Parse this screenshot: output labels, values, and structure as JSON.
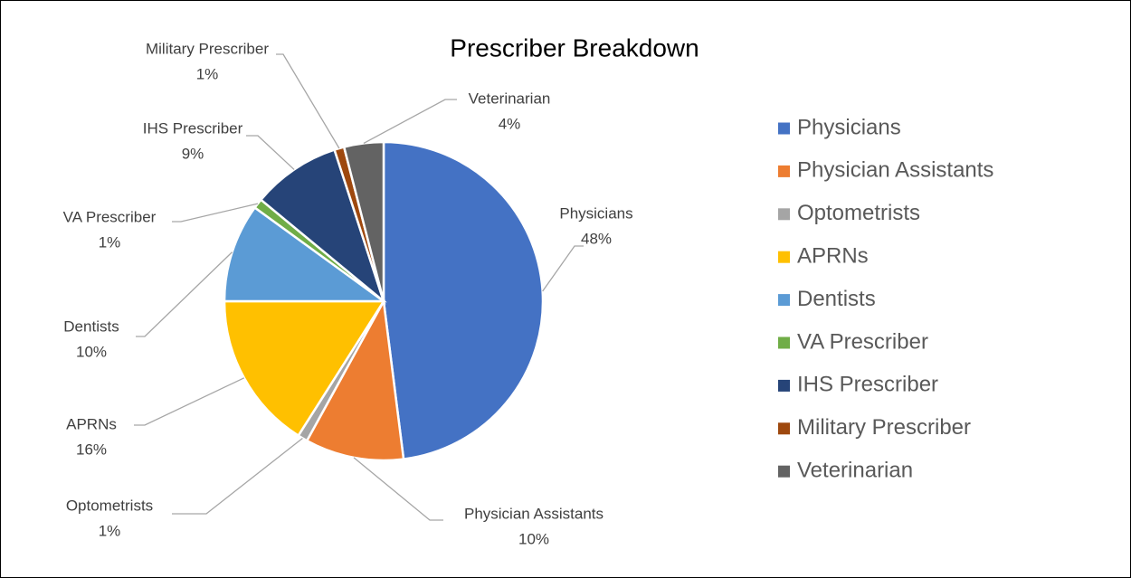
{
  "chart_data": {
    "type": "pie",
    "title": "Prescriber Breakdown",
    "categories": [
      "Physicians",
      "Physician Assistants",
      "Optometrists",
      "APRNs",
      "Dentists",
      "VA Prescriber",
      "IHS Prescriber",
      "Military Prescriber",
      "Veterinarian"
    ],
    "values": [
      48,
      10,
      1,
      16,
      10,
      1,
      9,
      1,
      4
    ],
    "value_labels": [
      "48%",
      "10%",
      "1%",
      "16%",
      "10%",
      "1%",
      "9%",
      "1%",
      "4%"
    ],
    "colors": [
      "#4472c4",
      "#ed7d31",
      "#a5a5a5",
      "#ffc000",
      "#5b9bd5",
      "#70ad47",
      "#264478",
      "#9e480e",
      "#636363"
    ],
    "legend": "right"
  }
}
